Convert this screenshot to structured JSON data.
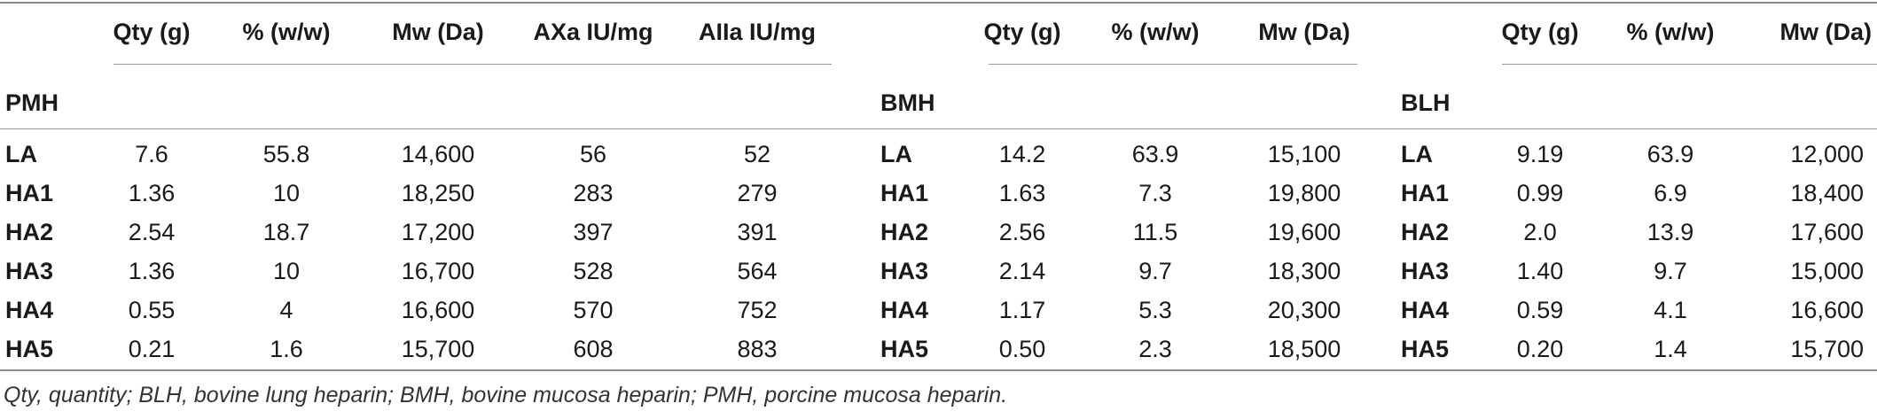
{
  "groups": [
    {
      "name": "PMH",
      "columns": [
        "Qty (g)",
        "% (w/w)",
        "Mw (Da)",
        "AXa IU/mg",
        "AIIa IU/mg"
      ],
      "rows": [
        {
          "label": "LA",
          "values": [
            "7.6",
            "55.8",
            "14,600",
            "56",
            "52"
          ]
        },
        {
          "label": "HA1",
          "values": [
            "1.36",
            "10",
            "18,250",
            "283",
            "279"
          ]
        },
        {
          "label": "HA2",
          "values": [
            "2.54",
            "18.7",
            "17,200",
            "397",
            "391"
          ]
        },
        {
          "label": "HA3",
          "values": [
            "1.36",
            "10",
            "16,700",
            "528",
            "564"
          ]
        },
        {
          "label": "HA4",
          "values": [
            "0.55",
            "4",
            "16,600",
            "570",
            "752"
          ]
        },
        {
          "label": "HA5",
          "values": [
            "0.21",
            "1.6",
            "15,700",
            "608",
            "883"
          ]
        }
      ]
    },
    {
      "name": "BMH",
      "columns": [
        "Qty (g)",
        "% (w/w)",
        "Mw (Da)"
      ],
      "rows": [
        {
          "label": "LA",
          "values": [
            "14.2",
            "63.9",
            "15,100"
          ]
        },
        {
          "label": "HA1",
          "values": [
            "1.63",
            "7.3",
            "19,800"
          ]
        },
        {
          "label": "HA2",
          "values": [
            "2.56",
            "11.5",
            "19,600"
          ]
        },
        {
          "label": "HA3",
          "values": [
            "2.14",
            "9.7",
            "18,300"
          ]
        },
        {
          "label": "HA4",
          "values": [
            "1.17",
            "5.3",
            "20,300"
          ]
        },
        {
          "label": "HA5",
          "values": [
            "0.50",
            "2.3",
            "18,500"
          ]
        }
      ]
    },
    {
      "name": "BLH",
      "columns": [
        "Qty (g)",
        "% (w/w)",
        "Mw (Da)"
      ],
      "rows": [
        {
          "label": "LA",
          "values": [
            "9.19",
            "63.9",
            "12,000"
          ]
        },
        {
          "label": "HA1",
          "values": [
            "0.99",
            "6.9",
            "18,400"
          ]
        },
        {
          "label": "HA2",
          "values": [
            "2.0",
            "13.9",
            "17,600"
          ]
        },
        {
          "label": "HA3",
          "values": [
            "1.40",
            "9.7",
            "15,000"
          ]
        },
        {
          "label": "HA4",
          "values": [
            "0.59",
            "4.1",
            "16,600"
          ]
        },
        {
          "label": "HA5",
          "values": [
            "0.20",
            "1.4",
            "15,700"
          ]
        }
      ]
    }
  ],
  "footnote": "Qty, quantity; BLH, bovine lung heparin; BMH, bovine mucosa heparin; PMH, porcine mucosa heparin."
}
